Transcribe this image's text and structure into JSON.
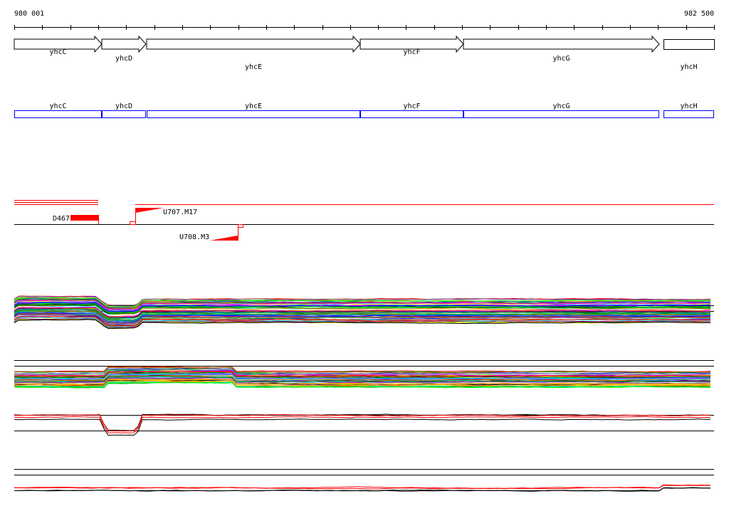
{
  "ruler": {
    "start_label": "980 001",
    "end_label": "982 500"
  },
  "genes": [
    {
      "name": "yhcC",
      "strand": "+"
    },
    {
      "name": "yhcD",
      "strand": "+"
    },
    {
      "name": "yhcE",
      "strand": "+"
    },
    {
      "name": "yhcF",
      "strand": "+"
    },
    {
      "name": "yhcG",
      "strand": "+"
    },
    {
      "name": "yhcH",
      "strand": "+"
    }
  ],
  "features": {
    "d467": "D467",
    "u707": "U707.M17",
    "u708": "U708.M3"
  },
  "colors": {
    "gene_box": "#0000ff",
    "feature": "#ff0000",
    "axis": "#000000"
  }
}
